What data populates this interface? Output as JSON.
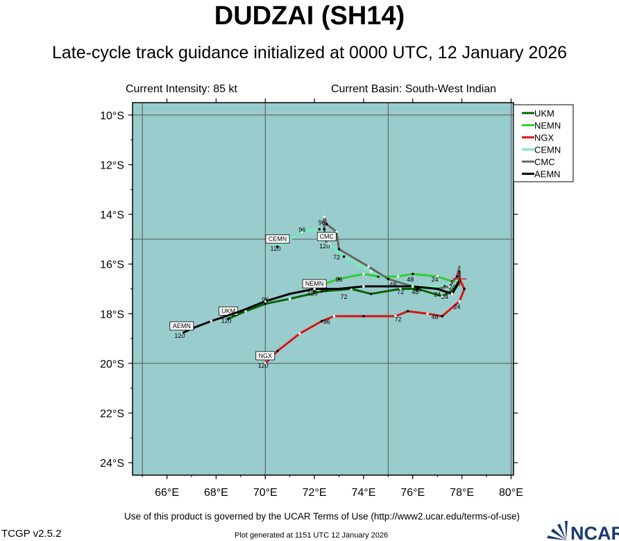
{
  "title": "DUDZAI (SH14)",
  "subtitle": "Late-cycle track guidance initialized at 0000 UTC, 12 January 2026",
  "current_intensity": "Current Intensity: 85 kt",
  "current_basin": "Current Basin: South-West Indian",
  "terms": "Use of this product is governed by the UCAR Terms of Use (http://www2.ucar.edu/terms-of-use)",
  "version": "TCGP v2.5.2",
  "generated": "Plot generated at 1151 UTC   12 January 2026",
  "logo_text": "NCAR",
  "colors": {
    "ocean": "#99cccc",
    "UKM": "#006400",
    "NEMN": "#33cc33",
    "NGX": "#dd1111",
    "CEMN": "#77eebb",
    "CMC": "#666666",
    "AEMN": "#000000",
    "current_position": "#dd1111"
  },
  "chart_data": {
    "type": "map",
    "lon_ticks": [
      "66°E",
      "68°E",
      "70°E",
      "72°E",
      "74°E",
      "76°E",
      "78°E",
      "80°E"
    ],
    "lat_ticks": [
      "10°S",
      "12°S",
      "14°S",
      "16°S",
      "18°S",
      "20°S",
      "22°S",
      "24°S"
    ],
    "lon_range": [
      64.6,
      80.1
    ],
    "lat_range": [
      -24.5,
      -9.5
    ],
    "grid_lons": [
      65,
      70,
      75,
      80
    ],
    "grid_lats": [
      -10,
      -15,
      -20
    ],
    "legend_placement": "top-right outside",
    "current_position": {
      "lon": 77.9,
      "lat": -16.6
    },
    "tracks": [
      {
        "name": "UKM",
        "end_label": "UKM",
        "end_hour": "120",
        "points": [
          [
            77.9,
            -16.6
          ],
          [
            77.7,
            -17.0
          ],
          [
            77.2,
            -17.3
          ],
          [
            76.2,
            -17.0
          ],
          [
            75.5,
            -17.0
          ],
          [
            74.3,
            -17.2
          ],
          [
            73.5,
            -17.0
          ],
          [
            72.3,
            -17.1
          ],
          [
            71.0,
            -17.4
          ],
          [
            70.0,
            -17.6
          ],
          [
            69.2,
            -17.9
          ],
          [
            68.5,
            -18.2
          ]
        ],
        "hour_labels": [
          {
            "text": "24",
            "lon": 77.3,
            "lat": -17.3
          },
          {
            "text": "72",
            "lon": 73.2,
            "lat": -17.3
          }
        ]
      },
      {
        "name": "NEMN",
        "end_label": "NEMN",
        "end_hour": "120",
        "points": [
          [
            77.9,
            -16.6
          ],
          [
            77.6,
            -16.7
          ],
          [
            77.0,
            -16.5
          ],
          [
            76.0,
            -16.4
          ],
          [
            75.4,
            -16.5
          ],
          [
            74.6,
            -16.5
          ],
          [
            74.0,
            -16.4
          ],
          [
            73.0,
            -16.6
          ],
          [
            72.4,
            -16.8
          ],
          [
            72.0,
            -17.1
          ]
        ],
        "hour_labels": [
          {
            "text": "24",
            "lon": 76.9,
            "lat": -16.6
          },
          {
            "text": "48",
            "lon": 75.9,
            "lat": -16.6
          },
          {
            "text": "48",
            "lon": 75.2,
            "lat": -16.8
          },
          {
            "text": "96",
            "lon": 73.0,
            "lat": -16.6
          },
          {
            "text": "96",
            "lon": 72.4,
            "lat": -17.0
          }
        ]
      },
      {
        "name": "NGX",
        "end_label": "NGX",
        "end_hour": "120",
        "points": [
          [
            77.9,
            -16.6
          ],
          [
            78.1,
            -17.0
          ],
          [
            77.9,
            -17.5
          ],
          [
            77.2,
            -18.1
          ],
          [
            76.6,
            -18.0
          ],
          [
            75.8,
            -17.9
          ],
          [
            75.3,
            -18.1
          ],
          [
            74.0,
            -18.1
          ],
          [
            72.8,
            -18.1
          ],
          [
            72.3,
            -18.3
          ],
          [
            71.4,
            -18.8
          ],
          [
            70.5,
            -19.5
          ],
          [
            70.0,
            -20.0
          ]
        ],
        "hour_labels": [
          {
            "text": "24",
            "lon": 77.8,
            "lat": -17.7
          },
          {
            "text": "48",
            "lon": 76.9,
            "lat": -18.1
          },
          {
            "text": "72",
            "lon": 75.4,
            "lat": -18.2
          },
          {
            "text": "96",
            "lon": 72.5,
            "lat": -18.3
          }
        ]
      },
      {
        "name": "CEMN",
        "end_label": "CEMN",
        "end_hour": "120",
        "points": [
          [
            77.9,
            -16.6
          ],
          [
            77.3,
            -16.9
          ],
          [
            76.3,
            -16.9
          ],
          [
            75.0,
            -16.6
          ],
          [
            74.3,
            -16.3
          ],
          [
            73.2,
            -15.7
          ],
          [
            72.6,
            -15.2
          ],
          [
            72.2,
            -14.6
          ],
          [
            71.5,
            -14.7
          ],
          [
            70.5,
            -15.3
          ]
        ],
        "hour_labels": [
          {
            "text": "96",
            "lon": 71.5,
            "lat": -14.6
          }
        ]
      },
      {
        "name": "CMC",
        "end_label": "CMC",
        "end_hour": "120",
        "points": [
          [
            77.9,
            -16.1
          ],
          [
            77.8,
            -16.5
          ],
          [
            77.5,
            -16.9
          ],
          [
            77.0,
            -17.0
          ],
          [
            76.0,
            -16.9
          ],
          [
            75.0,
            -16.6
          ],
          [
            74.2,
            -16.1
          ],
          [
            73.0,
            -15.4
          ],
          [
            72.9,
            -14.7
          ],
          [
            72.5,
            -14.4
          ],
          [
            72.4,
            -14.1
          ],
          [
            72.4,
            -14.6
          ],
          [
            72.5,
            -15.2
          ]
        ],
        "hour_labels": [
          {
            "text": "24",
            "lon": 77.6,
            "lat": -16.9
          },
          {
            "text": "48",
            "lon": 76.1,
            "lat": -17.1
          },
          {
            "text": "72",
            "lon": 72.9,
            "lat": -15.7
          },
          {
            "text": "96",
            "lon": 72.3,
            "lat": -14.3
          }
        ]
      },
      {
        "name": "AEMN",
        "end_label": "AEMN",
        "end_hour": "120",
        "points": [
          [
            77.9,
            -16.3
          ],
          [
            77.9,
            -16.7
          ],
          [
            77.6,
            -17.2
          ],
          [
            77.0,
            -17.0
          ],
          [
            76.0,
            -16.9
          ],
          [
            75.0,
            -16.9
          ],
          [
            74.0,
            -16.9
          ],
          [
            73.0,
            -17.0
          ],
          [
            72.0,
            -17.0
          ],
          [
            71.0,
            -17.2
          ],
          [
            70.0,
            -17.5
          ],
          [
            69.0,
            -17.9
          ],
          [
            67.8,
            -18.3
          ],
          [
            67.0,
            -18.6
          ],
          [
            66.6,
            -18.8
          ]
        ],
        "hour_labels": [
          {
            "text": "24",
            "lon": 77.0,
            "lat": -17.2
          },
          {
            "text": "48",
            "lon": 76.2,
            "lat": -17.0
          },
          {
            "text": "72",
            "lon": 75.5,
            "lat": -17.1
          },
          {
            "text": "96",
            "lon": 70.0,
            "lat": -17.4
          }
        ]
      }
    ],
    "legend": [
      "UKM",
      "NEMN",
      "NGX",
      "CEMN",
      "CMC",
      "AEMN"
    ]
  }
}
